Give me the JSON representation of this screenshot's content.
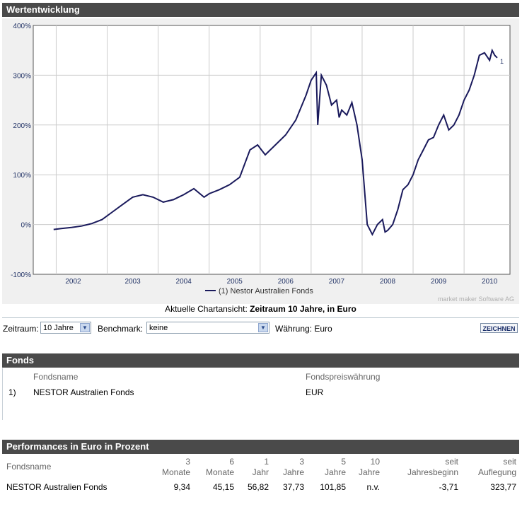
{
  "sections": {
    "wertentwicklung": "Wertentwicklung",
    "fonds": "Fonds",
    "performance": "Performances in Euro in Prozent"
  },
  "chart_data": {
    "type": "line",
    "title": "",
    "xlabel": "",
    "ylabel": "",
    "ylim": [
      -100,
      400
    ],
    "y_ticks": [
      "400%",
      "300%",
      "200%",
      "100%",
      "0%",
      "-100%"
    ],
    "x_ticks": [
      "2002",
      "2003",
      "2004",
      "2005",
      "2006",
      "2007",
      "2008",
      "2009",
      "2010"
    ],
    "legend": "(1) Nestor Australien Fonds",
    "end_label": "1",
    "watermark": "market maker Software AG",
    "series": [
      {
        "name": "Nestor Australien Fonds",
        "color": "#1a1a5c",
        "x": [
          2001.95,
          2002.1,
          2002.3,
          2002.5,
          2002.7,
          2002.9,
          2003.1,
          2003.3,
          2003.5,
          2003.7,
          2003.9,
          2004.1,
          2004.3,
          2004.5,
          2004.7,
          2004.9,
          2005.0,
          2005.2,
          2005.4,
          2005.6,
          2005.8,
          2005.95,
          2006.1,
          2006.25,
          2006.5,
          2006.7,
          2006.9,
          2007.0,
          2007.1,
          2007.13,
          2007.2,
          2007.3,
          2007.4,
          2007.5,
          2007.55,
          2007.6,
          2007.7,
          2007.8,
          2007.9,
          2008.0,
          2008.1,
          2008.2,
          2008.3,
          2008.4,
          2008.45,
          2008.5,
          2008.6,
          2008.7,
          2008.8,
          2008.9,
          2009.0,
          2009.1,
          2009.2,
          2009.3,
          2009.4,
          2009.5,
          2009.6,
          2009.7,
          2009.8,
          2009.9,
          2010.0,
          2010.1,
          2010.2,
          2010.3,
          2010.4,
          2010.5,
          2010.55,
          2010.6,
          2010.65
        ],
        "y": [
          -10,
          -8,
          -6,
          -3,
          2,
          10,
          25,
          40,
          55,
          60,
          55,
          45,
          50,
          60,
          72,
          55,
          62,
          70,
          80,
          95,
          150,
          160,
          140,
          155,
          180,
          210,
          260,
          290,
          305,
          200,
          300,
          280,
          240,
          250,
          215,
          230,
          220,
          245,
          200,
          130,
          0,
          -20,
          0,
          10,
          -15,
          -12,
          0,
          30,
          70,
          80,
          100,
          130,
          150,
          170,
          175,
          200,
          220,
          190,
          200,
          220,
          250,
          270,
          300,
          340,
          345,
          330,
          350,
          340,
          335
        ]
      }
    ]
  },
  "chart_caption": {
    "prefix": "Aktuelle Chartansicht:",
    "value": "Zeitraum 10 Jahre, in Euro"
  },
  "controls": {
    "zeitraum_label": "Zeitraum:",
    "zeitraum_value": "10 Jahre",
    "benchmark_label": "Benchmark:",
    "benchmark_value": "keine",
    "waehrung_label": "Währung: Euro",
    "zeichnen": "ZEICHNEN"
  },
  "fonds_table": {
    "col_name": "Fondsname",
    "col_currency": "Fondspreiswährung",
    "rows": [
      {
        "index": "1)",
        "name": "NESTOR Australien Fonds",
        "currency": "EUR"
      }
    ]
  },
  "perf_table": {
    "col_name": "Fondsname",
    "cols": [
      {
        "l1": "3",
        "l2": "Monate"
      },
      {
        "l1": "6",
        "l2": "Monate"
      },
      {
        "l1": "1",
        "l2": "Jahr"
      },
      {
        "l1": "3",
        "l2": "Jahre"
      },
      {
        "l1": "5",
        "l2": "Jahre"
      },
      {
        "l1": "10",
        "l2": "Jahre"
      },
      {
        "l1": "seit",
        "l2": "Jahresbeginn"
      },
      {
        "l1": "seit",
        "l2": "Auflegung"
      }
    ],
    "row": {
      "name": "NESTOR Australien Fonds",
      "values": [
        "9,34",
        "45,15",
        "56,82",
        "37,73",
        "101,85",
        "n.v.",
        "-3,71",
        "323,77"
      ]
    }
  }
}
